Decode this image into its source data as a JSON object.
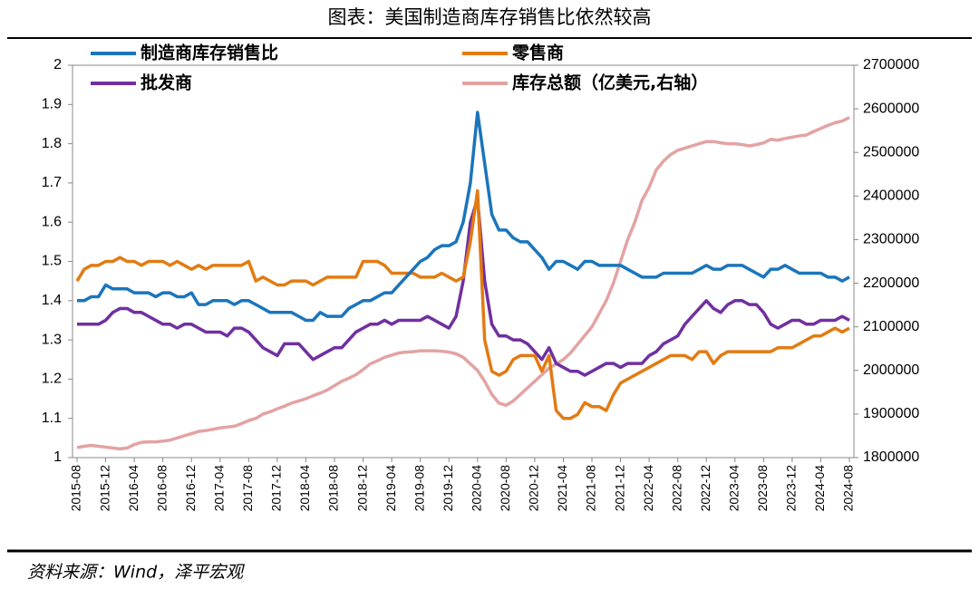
{
  "chart_data": {
    "type": "line",
    "title": "图表：美国制造商库存销售比依然较高",
    "source": "资料来源：Wind，泽平宏观",
    "categories": [
      "2015-08",
      null,
      null,
      null,
      "2015-12",
      null,
      null,
      null,
      "2016-04",
      null,
      null,
      null,
      "2016-08",
      null,
      null,
      null,
      "2016-12",
      null,
      null,
      null,
      "2017-04",
      null,
      null,
      null,
      "2017-08",
      null,
      null,
      null,
      "2017-12",
      null,
      null,
      null,
      "2018-04",
      null,
      null,
      null,
      "2018-08",
      null,
      null,
      null,
      "2018-12",
      null,
      null,
      null,
      "2019-04",
      null,
      null,
      null,
      "2019-08",
      null,
      null,
      null,
      "2019-12",
      null,
      null,
      null,
      "2020-04",
      null,
      null,
      null,
      "2020-08",
      null,
      null,
      null,
      "2020-12",
      null,
      null,
      null,
      "2021-04",
      null,
      null,
      null,
      "2021-08",
      null,
      null,
      null,
      "2021-12",
      null,
      null,
      null,
      "2022-04",
      null,
      null,
      null,
      "2022-08",
      null,
      null,
      null,
      "2022-12",
      null,
      null,
      null,
      "2023-04",
      null,
      null,
      null,
      "2023-08",
      null,
      null,
      null,
      "2023-12",
      null,
      null,
      null,
      "2024-04",
      null,
      null,
      null,
      "2024-08"
    ],
    "ylim": [
      1,
      2
    ],
    "yticks": [
      1,
      1.1,
      1.2,
      1.3,
      1.4,
      1.5,
      1.6,
      1.7,
      1.8,
      1.9,
      2
    ],
    "y2lim": [
      1800000,
      2700000
    ],
    "y2ticks": [
      1800000,
      1900000,
      2000000,
      2100000,
      2200000,
      2300000,
      2400000,
      2500000,
      2600000,
      2700000
    ],
    "series": [
      {
        "name": "制造商库存销售比",
        "color": "#1b75bb",
        "values": [
          1.4,
          1.4,
          1.41,
          1.41,
          1.44,
          1.43,
          1.43,
          1.43,
          1.42,
          1.42,
          1.42,
          1.41,
          1.42,
          1.42,
          1.41,
          1.41,
          1.42,
          1.39,
          1.39,
          1.4,
          1.4,
          1.4,
          1.39,
          1.4,
          1.4,
          1.39,
          1.38,
          1.37,
          1.37,
          1.37,
          1.37,
          1.36,
          1.35,
          1.35,
          1.37,
          1.36,
          1.36,
          1.36,
          1.38,
          1.39,
          1.4,
          1.4,
          1.41,
          1.42,
          1.42,
          1.44,
          1.46,
          1.48,
          1.5,
          1.51,
          1.53,
          1.54,
          1.54,
          1.55,
          1.6,
          1.7,
          1.88,
          1.75,
          1.62,
          1.58,
          1.58,
          1.56,
          1.55,
          1.55,
          1.53,
          1.51,
          1.48,
          1.5,
          1.5,
          1.49,
          1.48,
          1.5,
          1.5,
          1.49,
          1.49,
          1.49,
          1.49,
          1.48,
          1.47,
          1.46,
          1.46,
          1.46,
          1.47,
          1.47,
          1.47,
          1.47,
          1.47,
          1.48,
          1.49,
          1.48,
          1.48,
          1.49,
          1.49,
          1.49,
          1.48,
          1.47,
          1.46,
          1.48,
          1.48,
          1.49,
          1.48,
          1.47,
          1.47,
          1.47,
          1.47,
          1.46,
          1.46,
          1.45,
          1.46
        ]
      },
      {
        "name": "零售商",
        "color": "#e27b12",
        "values": [
          1.45,
          1.48,
          1.49,
          1.49,
          1.5,
          1.5,
          1.51,
          1.5,
          1.5,
          1.49,
          1.5,
          1.5,
          1.5,
          1.49,
          1.5,
          1.49,
          1.48,
          1.49,
          1.48,
          1.49,
          1.49,
          1.49,
          1.49,
          1.49,
          1.5,
          1.45,
          1.46,
          1.45,
          1.44,
          1.44,
          1.45,
          1.45,
          1.45,
          1.44,
          1.45,
          1.46,
          1.46,
          1.46,
          1.46,
          1.46,
          1.5,
          1.5,
          1.5,
          1.49,
          1.47,
          1.47,
          1.47,
          1.47,
          1.46,
          1.46,
          1.46,
          1.47,
          1.46,
          1.45,
          1.46,
          1.55,
          1.68,
          1.3,
          1.22,
          1.21,
          1.22,
          1.25,
          1.26,
          1.26,
          1.26,
          1.22,
          1.26,
          1.12,
          1.1,
          1.1,
          1.11,
          1.14,
          1.13,
          1.13,
          1.12,
          1.16,
          1.19,
          1.2,
          1.21,
          1.22,
          1.23,
          1.24,
          1.25,
          1.26,
          1.26,
          1.26,
          1.25,
          1.27,
          1.27,
          1.24,
          1.26,
          1.27,
          1.27,
          1.27,
          1.27,
          1.27,
          1.27,
          1.27,
          1.28,
          1.28,
          1.28,
          1.29,
          1.3,
          1.31,
          1.31,
          1.32,
          1.33,
          1.32,
          1.33
        ]
      },
      {
        "name": "批发商",
        "color": "#7030a0",
        "values": [
          1.34,
          1.34,
          1.34,
          1.34,
          1.35,
          1.37,
          1.38,
          1.38,
          1.37,
          1.37,
          1.36,
          1.35,
          1.34,
          1.34,
          1.33,
          1.34,
          1.34,
          1.33,
          1.32,
          1.32,
          1.32,
          1.31,
          1.33,
          1.33,
          1.32,
          1.3,
          1.28,
          1.27,
          1.26,
          1.29,
          1.29,
          1.29,
          1.27,
          1.25,
          1.26,
          1.27,
          1.28,
          1.28,
          1.3,
          1.32,
          1.33,
          1.34,
          1.34,
          1.35,
          1.34,
          1.35,
          1.35,
          1.35,
          1.35,
          1.36,
          1.35,
          1.34,
          1.33,
          1.36,
          1.45,
          1.6,
          1.66,
          1.45,
          1.34,
          1.31,
          1.31,
          1.3,
          1.3,
          1.29,
          1.27,
          1.25,
          1.28,
          1.24,
          1.23,
          1.22,
          1.22,
          1.21,
          1.22,
          1.23,
          1.24,
          1.24,
          1.23,
          1.24,
          1.24,
          1.24,
          1.26,
          1.27,
          1.29,
          1.3,
          1.31,
          1.34,
          1.36,
          1.38,
          1.4,
          1.38,
          1.37,
          1.39,
          1.4,
          1.4,
          1.39,
          1.39,
          1.37,
          1.34,
          1.33,
          1.34,
          1.35,
          1.35,
          1.34,
          1.34,
          1.35,
          1.35,
          1.35,
          1.36,
          1.35
        ]
      },
      {
        "name": "库存总额（亿美元,右轴）",
        "color": "#e3a3a3",
        "axis": "y2",
        "values": [
          1823000,
          1826000,
          1828000,
          1826000,
          1824000,
          1822000,
          1820000,
          1822000,
          1830000,
          1835000,
          1836000,
          1836000,
          1838000,
          1840000,
          1845000,
          1850000,
          1855000,
          1860000,
          1862000,
          1865000,
          1868000,
          1870000,
          1872000,
          1878000,
          1885000,
          1890000,
          1900000,
          1905000,
          1912000,
          1918000,
          1925000,
          1930000,
          1935000,
          1942000,
          1948000,
          1955000,
          1965000,
          1975000,
          1982000,
          1990000,
          2002000,
          2015000,
          2022000,
          2030000,
          2035000,
          2040000,
          2042000,
          2043000,
          2045000,
          2045000,
          2045000,
          2044000,
          2042000,
          2038000,
          2030000,
          2015000,
          2000000,
          1975000,
          1945000,
          1925000,
          1920000,
          1930000,
          1945000,
          1960000,
          1975000,
          1990000,
          2005000,
          2015000,
          2025000,
          2040000,
          2060000,
          2080000,
          2100000,
          2130000,
          2160000,
          2200000,
          2250000,
          2300000,
          2340000,
          2390000,
          2420000,
          2460000,
          2480000,
          2495000,
          2505000,
          2510000,
          2515000,
          2520000,
          2525000,
          2525000,
          2522000,
          2520000,
          2520000,
          2518000,
          2515000,
          2518000,
          2522000,
          2530000,
          2528000,
          2532000,
          2535000,
          2538000,
          2540000,
          2548000,
          2555000,
          2562000,
          2568000,
          2572000,
          2580000
        ]
      }
    ]
  }
}
